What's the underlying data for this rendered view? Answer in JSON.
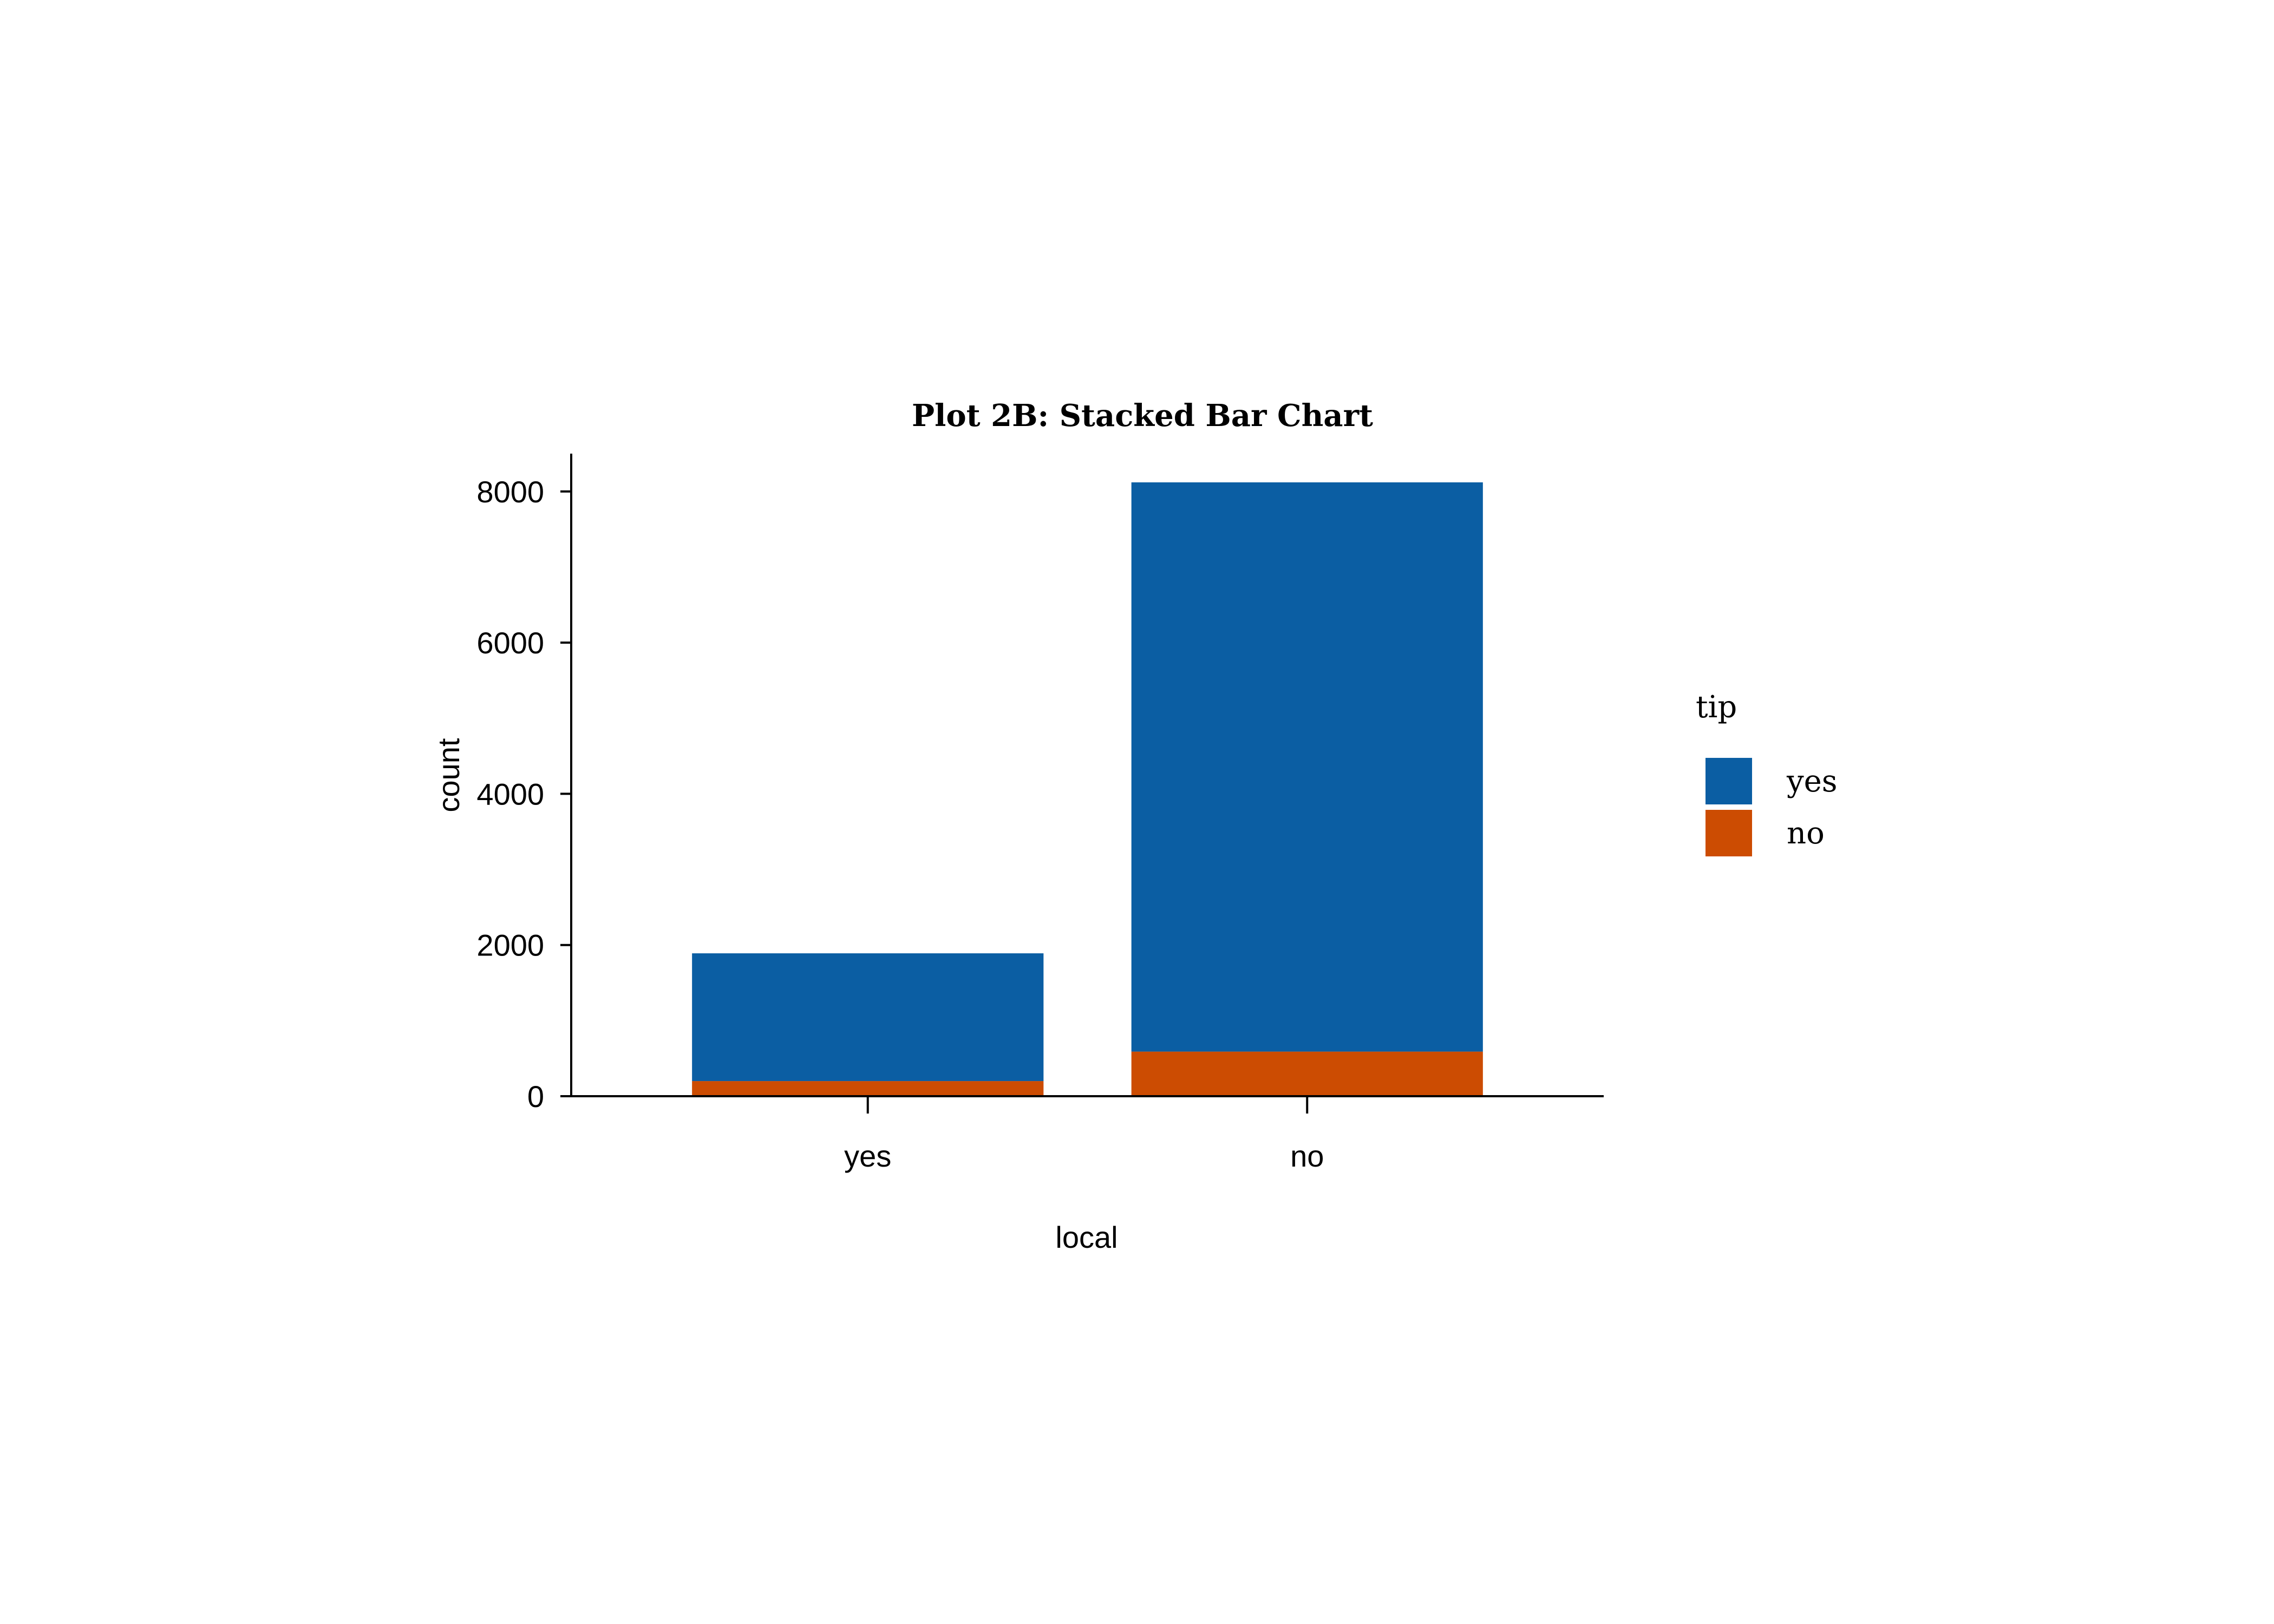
{
  "chart_data": {
    "type": "bar",
    "stacked": true,
    "title": "Plot 2B: Stacked Bar Chart",
    "xlabel": "local",
    "ylabel": "count",
    "categories": [
      "yes",
      "no"
    ],
    "series": [
      {
        "name": "no",
        "color": "#cc4c02",
        "values": [
          200,
          590
        ]
      },
      {
        "name": "yes",
        "color": "#0b5ea3",
        "values": [
          1690,
          7530
        ]
      }
    ],
    "totals": [
      1890,
      8120
    ],
    "ylim": [
      0,
      8500
    ],
    "yticks": [
      0,
      2000,
      4000,
      6000,
      8000
    ],
    "ytick_labels": [
      "0",
      "2000",
      "4000",
      "6000",
      "8000"
    ],
    "grid": false,
    "legend": {
      "title": "tip",
      "position": "right",
      "entries": [
        {
          "label": "yes",
          "color": "#0b5ea3"
        },
        {
          "label": "no",
          "color": "#cc4c02"
        }
      ]
    }
  }
}
